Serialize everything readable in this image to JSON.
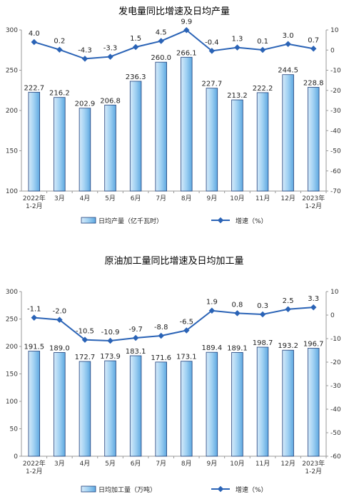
{
  "colors": {
    "bar_fill_top": "#ffffff",
    "bar_fill_bottom": "#6fb4e6",
    "bar_stroke": "#1f3f7a",
    "line": "#2a63b6",
    "axis": "#999999"
  },
  "chart_data": [
    {
      "type": "bar",
      "title": "发电量同比增速及日均产量",
      "categories": [
        "2022年\n1-2月",
        "3月",
        "4月",
        "5月",
        "6月",
        "7月",
        "8月",
        "9月",
        "10月",
        "11月",
        "12月",
        "2023年\n1-2月"
      ],
      "series": [
        {
          "name": "日均产量（亿千瓦时）",
          "type": "bar",
          "axis": "left",
          "values": [
            222.7,
            216.2,
            202.9,
            206.8,
            236.3,
            260.0,
            266.1,
            227.7,
            213.2,
            222.2,
            244.5,
            228.8
          ],
          "labels": [
            "222.7",
            "216.2",
            "202.9",
            "206.8",
            "236.3",
            "260.0",
            "266.1",
            "227.7",
            "213.2",
            "222.2",
            "244.5",
            "228.8"
          ]
        },
        {
          "name": "增速（%）",
          "type": "line",
          "axis": "right",
          "values": [
            4.0,
            0.2,
            -4.3,
            -3.3,
            1.5,
            4.5,
            9.9,
            -0.4,
            1.3,
            0.1,
            3.0,
            0.7
          ],
          "labels": [
            "4.0",
            "0.2",
            "-4.3",
            "-3.3",
            "1.5",
            "4.5",
            "9.9",
            "-0.4",
            "1.3",
            "0.1",
            "3.0",
            "0.7"
          ]
        }
      ],
      "ylim_left": [
        100,
        300
      ],
      "yticks_left": [
        "300",
        "250",
        "200",
        "150",
        "100"
      ],
      "ylim_right": [
        -70,
        10
      ],
      "yticks_right": [
        "10",
        "0",
        "-10",
        "-20",
        "-30",
        "-40",
        "-50",
        "-60",
        "-70"
      ],
      "legend_position": "bottom"
    },
    {
      "type": "bar",
      "title": "原油加工量同比增速及日均加工量",
      "categories": [
        "2022年\n1-2月",
        "3月",
        "4月",
        "5月",
        "6月",
        "7月",
        "8月",
        "9月",
        "10月",
        "11月",
        "12月",
        "2023年\n1-2月"
      ],
      "series": [
        {
          "name": "日均加工量（万吨）",
          "type": "bar",
          "axis": "left",
          "values": [
            191.5,
            189.0,
            172.7,
            173.9,
            183.1,
            171.6,
            173.1,
            189.4,
            189.1,
            198.7,
            193.2,
            196.7
          ],
          "labels": [
            "191.5",
            "189.0",
            "172.7",
            "173.9",
            "183.1",
            "171.6",
            "173.1",
            "189.4",
            "189.1",
            "198.7",
            "193.2",
            "196.7"
          ]
        },
        {
          "name": "增速（%）",
          "type": "line",
          "axis": "right",
          "values": [
            -1.1,
            -2.0,
            -10.5,
            -10.9,
            -9.7,
            -8.8,
            -6.5,
            1.9,
            0.8,
            0.3,
            2.5,
            3.3
          ],
          "labels": [
            "-1.1",
            "-2.0",
            "-10.5",
            "-10.9",
            "-9.7",
            "-8.8",
            "-6.5",
            "1.9",
            "0.8",
            "0.3",
            "2.5",
            "3.3"
          ]
        }
      ],
      "ylim_left": [
        0,
        300
      ],
      "yticks_left": [
        "300",
        "250",
        "200",
        "150",
        "100",
        "50",
        "0"
      ],
      "ylim_right": [
        -60,
        10
      ],
      "yticks_right": [
        "10",
        "0",
        "-10",
        "-20",
        "-30",
        "-40",
        "-50",
        "-60"
      ],
      "legend_position": "bottom"
    }
  ]
}
